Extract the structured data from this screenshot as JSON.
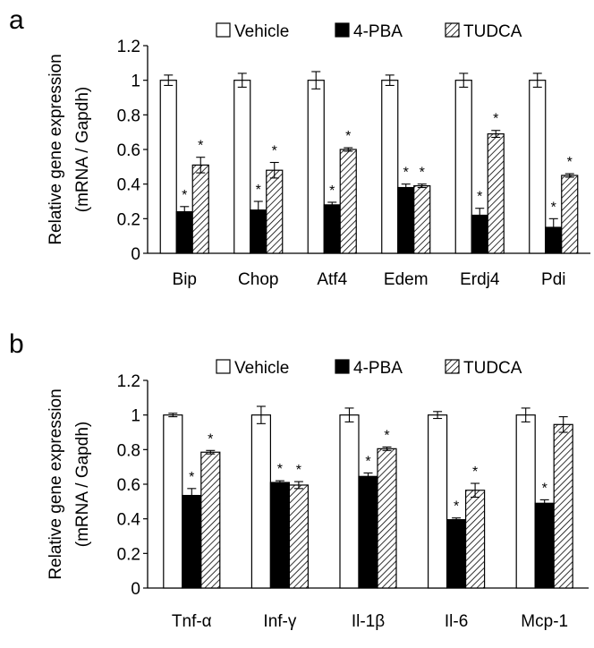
{
  "panels": [
    {
      "letter": "a"
    },
    {
      "letter": "b"
    }
  ],
  "legend": {
    "items": [
      {
        "label": "Vehicle",
        "style": "white"
      },
      {
        "label": "4-PBA",
        "style": "black"
      },
      {
        "label": "TUDCA",
        "style": "hatch"
      }
    ]
  },
  "colors": {
    "vehicle": "#ffffff",
    "pba": "#000000",
    "tudca_hatch": "#000000",
    "axis": "#000000"
  },
  "chart_data": [
    {
      "panel": "a",
      "type": "bar",
      "ylabel": "Relative gene expression (mRNA / Gapdh)",
      "ylabel_lines": [
        "Relative gene expression",
        "(mRNA / Gapdh)"
      ],
      "xlabel": "",
      "ylim": [
        0,
        1.2
      ],
      "yticks": [
        "0",
        "0.2",
        "0.4",
        "0.6",
        "0.8",
        "1",
        "1.2"
      ],
      "grid": false,
      "legend_position": "top",
      "categories": [
        "Bip",
        "Chop",
        "Atf4",
        "Edem",
        "Erdj4",
        "Pdi"
      ],
      "series": [
        {
          "name": "Vehicle",
          "values": [
            1.0,
            1.0,
            1.0,
            1.0,
            1.0,
            1.0
          ],
          "errors": [
            0.03,
            0.04,
            0.05,
            0.03,
            0.04,
            0.04
          ],
          "significant": [
            false,
            false,
            false,
            false,
            false,
            false
          ]
        },
        {
          "name": "4-PBA",
          "values": [
            0.24,
            0.25,
            0.28,
            0.38,
            0.22,
            0.15
          ],
          "errors": [
            0.03,
            0.05,
            0.015,
            0.02,
            0.04,
            0.05
          ],
          "significant": [
            true,
            true,
            true,
            true,
            true,
            true
          ]
        },
        {
          "name": "TUDCA",
          "values": [
            0.51,
            0.48,
            0.6,
            0.39,
            0.69,
            0.45
          ],
          "errors": [
            0.045,
            0.045,
            0.01,
            0.01,
            0.02,
            0.01
          ],
          "significant": [
            true,
            true,
            true,
            true,
            true,
            true
          ]
        }
      ]
    },
    {
      "panel": "b",
      "type": "bar",
      "ylabel": "Relative gene expression (mRNA / Gapdh)",
      "ylabel_lines": [
        "Relative gene expression",
        "(mRNA / Gapdh)"
      ],
      "xlabel": "",
      "ylim": [
        0,
        1.2
      ],
      "yticks": [
        "0",
        "0.2",
        "0.4",
        "0.6",
        "0.8",
        "1",
        "1.2"
      ],
      "grid": false,
      "legend_position": "top",
      "categories": [
        "Tnf-α",
        "Inf-γ",
        "Il-1β",
        "Il-6",
        "Mcp-1"
      ],
      "series": [
        {
          "name": "Vehicle",
          "values": [
            1.0,
            1.0,
            1.0,
            1.0,
            1.0
          ],
          "errors": [
            0.01,
            0.05,
            0.04,
            0.02,
            0.04
          ],
          "significant": [
            false,
            false,
            false,
            false,
            false
          ]
        },
        {
          "name": "4-PBA",
          "values": [
            0.535,
            0.61,
            0.645,
            0.395,
            0.49
          ],
          "errors": [
            0.04,
            0.01,
            0.02,
            0.01,
            0.02
          ],
          "significant": [
            true,
            true,
            true,
            true,
            true
          ]
        },
        {
          "name": "TUDCA",
          "values": [
            0.785,
            0.595,
            0.805,
            0.565,
            0.945
          ],
          "errors": [
            0.01,
            0.02,
            0.01,
            0.04,
            0.045
          ],
          "significant": [
            true,
            true,
            true,
            true,
            false
          ]
        }
      ]
    }
  ]
}
